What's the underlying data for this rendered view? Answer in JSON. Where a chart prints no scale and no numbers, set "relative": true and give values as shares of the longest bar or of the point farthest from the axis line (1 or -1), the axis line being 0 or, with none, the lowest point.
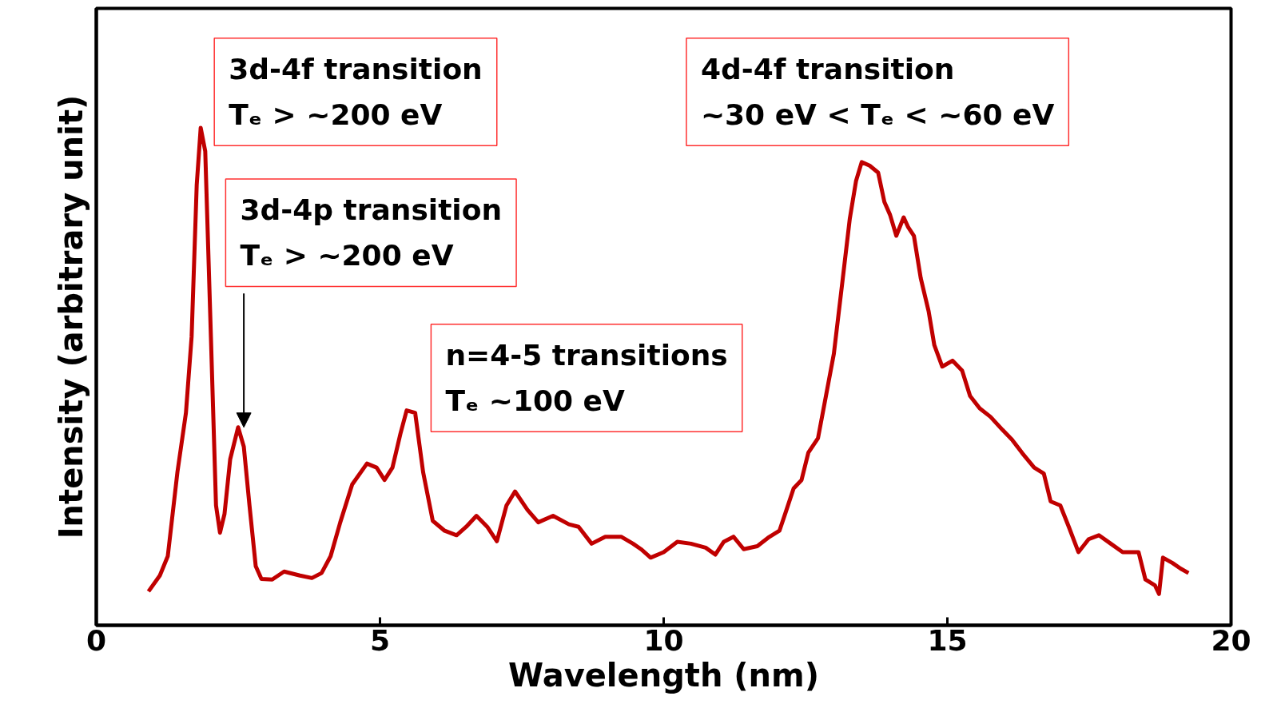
{
  "chart_data": {
    "type": "line",
    "relative": true,
    "xlabel": "Wavelength (nm)",
    "ylabel": "Intensity (arbitrary unit)",
    "xlim": [
      0,
      20
    ],
    "xticks": [
      0,
      5,
      10,
      15,
      20
    ],
    "tick_labels": "x",
    "grid": false,
    "marker": "none",
    "line_style": "solid",
    "series": [
      {
        "color": "#c00000",
        "x": [
          0.92,
          1.12,
          1.26,
          1.43,
          1.58,
          1.68,
          1.77,
          1.84,
          1.92,
          2.02,
          2.11,
          2.18,
          2.26,
          2.36,
          2.5,
          2.6,
          2.7,
          2.81,
          2.91,
          3.1,
          3.31,
          3.59,
          3.8,
          3.97,
          4.13,
          4.3,
          4.51,
          4.77,
          4.94,
          5.08,
          5.22,
          5.36,
          5.47,
          5.62,
          5.76,
          5.93,
          6.14,
          6.35,
          6.52,
          6.7,
          6.89,
          7.06,
          7.23,
          7.38,
          7.6,
          7.79,
          8.05,
          8.33,
          8.5,
          8.73,
          8.97,
          9.25,
          9.46,
          9.6,
          9.77,
          10.0,
          10.24,
          10.48,
          10.74,
          10.91,
          11.06,
          11.23,
          11.41,
          11.65,
          11.84,
          12.04,
          12.15,
          12.29,
          12.43,
          12.55,
          12.72,
          12.86,
          13.0,
          13.14,
          13.28,
          13.39,
          13.49,
          13.63,
          13.78,
          13.89,
          13.99,
          14.1,
          14.23,
          14.31,
          14.41,
          14.53,
          14.67,
          14.77,
          14.91,
          15.09,
          15.26,
          15.4,
          15.57,
          15.76,
          15.97,
          16.14,
          16.32,
          16.53,
          16.7,
          16.82,
          16.99,
          17.14,
          17.31,
          17.49,
          17.67,
          17.88,
          18.09,
          18.37,
          18.49,
          18.66,
          18.73,
          18.8,
          18.97,
          19.11,
          19.25
        ],
        "values": [
          0.068,
          0.1,
          0.139,
          0.308,
          0.427,
          0.58,
          0.885,
          1.0,
          0.953,
          0.58,
          0.241,
          0.186,
          0.224,
          0.334,
          0.398,
          0.359,
          0.241,
          0.119,
          0.093,
          0.092,
          0.108,
          0.1,
          0.095,
          0.105,
          0.139,
          0.207,
          0.283,
          0.325,
          0.317,
          0.292,
          0.317,
          0.385,
          0.432,
          0.427,
          0.308,
          0.21,
          0.19,
          0.181,
          0.198,
          0.22,
          0.198,
          0.169,
          0.241,
          0.269,
          0.232,
          0.207,
          0.22,
          0.203,
          0.198,
          0.164,
          0.178,
          0.178,
          0.164,
          0.153,
          0.136,
          0.147,
          0.168,
          0.164,
          0.156,
          0.142,
          0.168,
          0.178,
          0.153,
          0.159,
          0.176,
          0.19,
          0.227,
          0.275,
          0.292,
          0.347,
          0.376,
          0.461,
          0.546,
          0.681,
          0.817,
          0.893,
          0.931,
          0.924,
          0.91,
          0.851,
          0.825,
          0.783,
          0.82,
          0.8,
          0.783,
          0.698,
          0.631,
          0.563,
          0.52,
          0.532,
          0.512,
          0.461,
          0.436,
          0.419,
          0.393,
          0.373,
          0.346,
          0.317,
          0.305,
          0.249,
          0.241,
          0.198,
          0.147,
          0.173,
          0.181,
          0.164,
          0.147,
          0.147,
          0.092,
          0.08,
          0.063,
          0.136,
          0.125,
          0.114,
          0.105
        ]
      }
    ],
    "annotations": [
      "3d-4f transition\nTₑ > ~200 eV",
      {
        "text": "3d-4p transition\nTₑ > ~200 eV",
        "x": 2.6,
        "y": 0.398
      },
      "n=4-5 transitions\nTₑ ~100 eV",
      "4d-4f transition\n~30 eV < Tₑ < ~60 eV"
    ]
  }
}
